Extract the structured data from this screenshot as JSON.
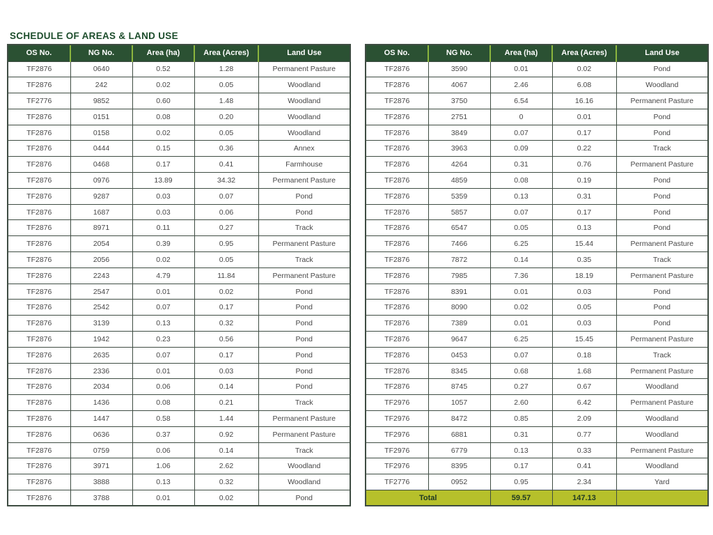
{
  "title": "SCHEDULE OF AREAS & LAND USE",
  "colors": {
    "header_bg": "#2b5133",
    "header_text": "#ffffff",
    "header_divider": "#8cb63e",
    "title_text": "#1d4d2c",
    "total_bg": "#b6c02b",
    "total_text": "#203a23",
    "border": "#3e4c42",
    "cell_text": "#474747",
    "page_bg": "#ffffff"
  },
  "columns": [
    "OS No.",
    "NG No.",
    "Area (ha)",
    "Area (Acres)",
    "Land Use"
  ],
  "tables": [
    {
      "id": "left",
      "rows": [
        [
          "TF2876",
          "0640",
          "0.52",
          "1.28",
          "Permanent Pasture"
        ],
        [
          "TF2876",
          "242",
          "0.02",
          "0.05",
          "Woodland"
        ],
        [
          "TF2776",
          "9852",
          "0.60",
          "1.48",
          "Woodland"
        ],
        [
          "TF2876",
          "0151",
          "0.08",
          "0.20",
          "Woodland"
        ],
        [
          "TF2876",
          "0158",
          "0.02",
          "0.05",
          "Woodland"
        ],
        [
          "TF2876",
          "0444",
          "0.15",
          "0.36",
          "Annex"
        ],
        [
          "TF2876",
          "0468",
          "0.17",
          "0.41",
          "Farmhouse"
        ],
        [
          "TF2876",
          "0976",
          "13.89",
          "34.32",
          "Permanent Pasture"
        ],
        [
          "TF2876",
          "9287",
          "0.03",
          "0.07",
          "Pond"
        ],
        [
          "TF2876",
          "1687",
          "0.03",
          "0.06",
          "Pond"
        ],
        [
          "TF2876",
          "8971",
          "0.11",
          "0.27",
          "Track"
        ],
        [
          "TF2876",
          "2054",
          "0.39",
          "0.95",
          "Permanent Pasture"
        ],
        [
          "TF2876",
          "2056",
          "0.02",
          "0.05",
          "Track"
        ],
        [
          "TF2876",
          "2243",
          "4.79",
          "11.84",
          "Permanent Pasture"
        ],
        [
          "TF2876",
          "2547",
          "0.01",
          "0.02",
          "Pond"
        ],
        [
          "TF2876",
          "2542",
          "0.07",
          "0.17",
          "Pond"
        ],
        [
          "TF2876",
          "3139",
          "0.13",
          "0.32",
          "Pond"
        ],
        [
          "TF2876",
          "1942",
          "0.23",
          "0.56",
          "Pond"
        ],
        [
          "TF2876",
          "2635",
          "0.07",
          "0.17",
          "Pond"
        ],
        [
          "TF2876",
          "2336",
          "0.01",
          "0.03",
          "Pond"
        ],
        [
          "TF2876",
          "2034",
          "0.06",
          "0.14",
          "Pond"
        ],
        [
          "TF2876",
          "1436",
          "0.08",
          "0.21",
          "Track"
        ],
        [
          "TF2876",
          "1447",
          "0.58",
          "1.44",
          "Permanent Pasture"
        ],
        [
          "TF2876",
          "0636",
          "0.37",
          "0.92",
          "Permanent Pasture"
        ],
        [
          "TF2876",
          "0759",
          "0.06",
          "0.14",
          "Track"
        ],
        [
          "TF2876",
          "3971",
          "1.06",
          "2.62",
          "Woodland"
        ],
        [
          "TF2876",
          "3888",
          "0.13",
          "0.32",
          "Woodland"
        ],
        [
          "TF2876",
          "3788",
          "0.01",
          "0.02",
          "Pond"
        ]
      ]
    },
    {
      "id": "right",
      "rows": [
        [
          "TF2876",
          "3590",
          "0.01",
          "0.02",
          "Pond"
        ],
        [
          "TF2876",
          "4067",
          "2.46",
          "6.08",
          "Woodland"
        ],
        [
          "TF2876",
          "3750",
          "6.54",
          "16.16",
          "Permanent Pasture"
        ],
        [
          "TF2876",
          "2751",
          "0",
          "0.01",
          "Pond"
        ],
        [
          "TF2876",
          "3849",
          "0.07",
          "0.17",
          "Pond"
        ],
        [
          "TF2876",
          "3963",
          "0.09",
          "0.22",
          "Track"
        ],
        [
          "TF2876",
          "4264",
          "0.31",
          "0.76",
          "Permanent Pasture"
        ],
        [
          "TF2876",
          "4859",
          "0.08",
          "0.19",
          "Pond"
        ],
        [
          "TF2876",
          "5359",
          "0.13",
          "0.31",
          "Pond"
        ],
        [
          "TF2876",
          "5857",
          "0.07",
          "0.17",
          "Pond"
        ],
        [
          "TF2876",
          "6547",
          "0.05",
          "0.13",
          "Pond"
        ],
        [
          "TF2876",
          "7466",
          "6.25",
          "15.44",
          "Permanent Pasture"
        ],
        [
          "TF2876",
          "7872",
          "0.14",
          "0.35",
          "Track"
        ],
        [
          "TF2876",
          "7985",
          "7.36",
          "18.19",
          "Permanent Pasture"
        ],
        [
          "TF2876",
          "8391",
          "0.01",
          "0.03",
          "Pond"
        ],
        [
          "TF2876",
          "8090",
          "0.02",
          "0.05",
          "Pond"
        ],
        [
          "TF2876",
          "7389",
          "0.01",
          "0.03",
          "Pond"
        ],
        [
          "TF2876",
          "9647",
          "6.25",
          "15.45",
          "Permanent Pasture"
        ],
        [
          "TF2876",
          "0453",
          "0.07",
          "0.18",
          "Track"
        ],
        [
          "TF2876",
          "8345",
          "0.68",
          "1.68",
          "Permanent Pasture"
        ],
        [
          "TF2876",
          "8745",
          "0.27",
          "0.67",
          "Woodland"
        ],
        [
          "TF2976",
          "1057",
          "2.60",
          "6.42",
          "Permanent Pasture"
        ],
        [
          "TF2976",
          "8472",
          "0.85",
          "2.09",
          "Woodland"
        ],
        [
          "TF2976",
          "6881",
          "0.31",
          "0.77",
          "Woodland"
        ],
        [
          "TF2976",
          "6779",
          "0.13",
          "0.33",
          "Permanent Pasture"
        ],
        [
          "TF2976",
          "8395",
          "0.17",
          "0.41",
          "Woodland"
        ],
        [
          "TF2776",
          "0952",
          "0.95",
          "2.34",
          "Yard"
        ]
      ],
      "total": {
        "label": "Total",
        "area_ha": "59.57",
        "area_acres": "147.13",
        "land_use": ""
      }
    }
  ]
}
